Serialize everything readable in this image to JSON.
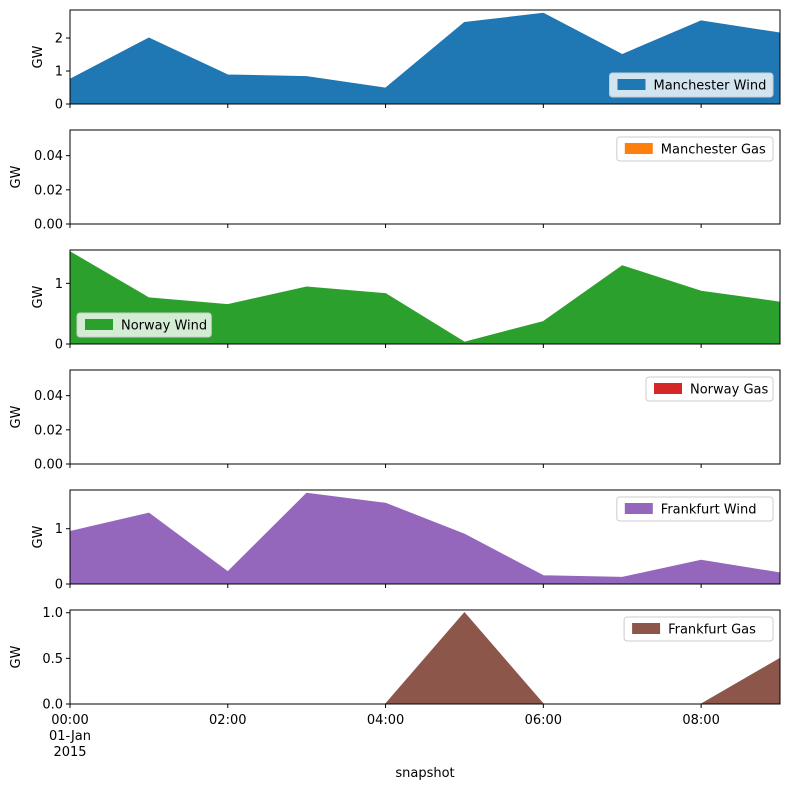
{
  "figure": {
    "xlabel": "snapshot",
    "x_tick_labels": [
      "00:00",
      "02:00",
      "04:00",
      "06:00",
      "08:00"
    ],
    "x_tick_hours": [
      0,
      2,
      4,
      6,
      8
    ],
    "x_tick_date_line1": "01-Jan",
    "x_tick_date_line2": "2015",
    "x_range_hours": [
      0,
      9
    ]
  },
  "chart_data": [
    {
      "type": "area",
      "ylabel": "GW",
      "ylim": [
        0,
        2.85
      ],
      "yticks": [
        0,
        1,
        2
      ],
      "ytick_labels": [
        "0",
        "1",
        "2"
      ],
      "legend_position": "lower-right",
      "series": [
        {
          "name": "Manchester Wind",
          "color": "#1f77b4",
          "x": [
            0,
            1,
            2,
            3,
            4,
            5,
            6,
            7,
            8,
            9
          ],
          "values": [
            0.75,
            2.0,
            0.88,
            0.83,
            0.48,
            2.47,
            2.75,
            1.5,
            2.52,
            2.15
          ]
        }
      ]
    },
    {
      "type": "area",
      "ylabel": "GW",
      "ylim": [
        0,
        0.055
      ],
      "yticks": [
        0,
        0.02,
        0.04
      ],
      "ytick_labels": [
        "0.00",
        "0.02",
        "0.04"
      ],
      "legend_position": "upper-right",
      "series": [
        {
          "name": "Manchester Gas",
          "color": "#ff7f0e",
          "x": [
            0,
            1,
            2,
            3,
            4,
            5,
            6,
            7,
            8,
            9
          ],
          "values": [
            0,
            0,
            0,
            0,
            0,
            0,
            0,
            0,
            0,
            0
          ]
        }
      ]
    },
    {
      "type": "area",
      "ylabel": "GW",
      "ylim": [
        0,
        1.55
      ],
      "yticks": [
        0,
        1
      ],
      "ytick_labels": [
        "0",
        "1"
      ],
      "legend_position": "lower-left",
      "series": [
        {
          "name": "Norway Wind",
          "color": "#2ca02c",
          "x": [
            0,
            1,
            2,
            3,
            4,
            5,
            6,
            7,
            8,
            9
          ],
          "values": [
            1.52,
            0.76,
            0.65,
            0.94,
            0.83,
            0.03,
            0.37,
            1.29,
            0.87,
            0.69
          ]
        }
      ]
    },
    {
      "type": "area",
      "ylabel": "GW",
      "ylim": [
        0,
        0.055
      ],
      "yticks": [
        0,
        0.02,
        0.04
      ],
      "ytick_labels": [
        "0.00",
        "0.02",
        "0.04"
      ],
      "legend_position": "upper-right",
      "series": [
        {
          "name": "Norway Gas",
          "color": "#d62728",
          "x": [
            0,
            1,
            2,
            3,
            4,
            5,
            6,
            7,
            8,
            9
          ],
          "values": [
            0,
            0,
            0,
            0,
            0,
            0,
            0,
            0,
            0,
            0
          ]
        }
      ]
    },
    {
      "type": "area",
      "ylabel": "GW",
      "ylim": [
        0,
        1.7
      ],
      "yticks": [
        0,
        1
      ],
      "ytick_labels": [
        "0",
        "1"
      ],
      "legend_position": "upper-right",
      "series": [
        {
          "name": "Frankfurt Wind",
          "color": "#9467bd",
          "x": [
            0,
            1,
            2,
            3,
            4,
            5,
            6,
            7,
            8,
            9
          ],
          "values": [
            0.95,
            1.28,
            0.22,
            1.64,
            1.46,
            0.9,
            0.15,
            0.12,
            0.43,
            0.2
          ]
        }
      ]
    },
    {
      "type": "area",
      "ylabel": "GW",
      "ylim": [
        0,
        1.03
      ],
      "yticks": [
        0,
        0.5,
        1.0
      ],
      "ytick_labels": [
        "0.0",
        "0.5",
        "1.0"
      ],
      "legend_position": "upper-right",
      "series": [
        {
          "name": "Frankfurt Gas",
          "color": "#8c564b",
          "x": [
            0,
            1,
            2,
            3,
            4,
            5,
            6,
            7,
            8,
            9
          ],
          "values": [
            0,
            0,
            0,
            0,
            0,
            1.0,
            0,
            0,
            0,
            0.5
          ]
        }
      ]
    }
  ]
}
